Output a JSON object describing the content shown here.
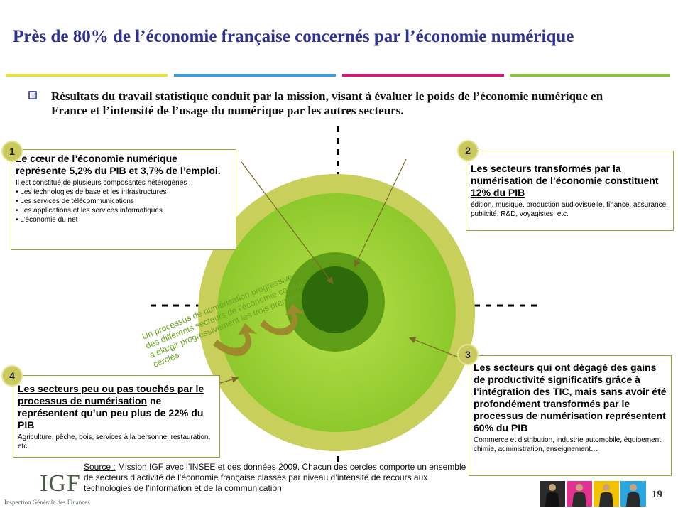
{
  "title": "Près de 80% de l’économie française concernés par l’économie numérique",
  "accent_colors": {
    "title": "#2e3192",
    "bar_yellow": "#e8e23a",
    "bar_blue": "#3a9fd8",
    "bar_magenta": "#d11b7c",
    "bar_green": "#8fc23f",
    "outer_ring": "#c9cf5b",
    "middle_disc": "#9fd63a",
    "inner_ring": "#5f9d17",
    "core": "#2d6b0a",
    "circle_text": "#6aa521"
  },
  "intro": {
    "bullet_icon": "hollow-square-bullet",
    "text": "Résultats du travail statistique conduit par la mission, visant à évaluer le poids de l’économie numérique en France et l’intensité de l’usage du numérique par les autres secteurs."
  },
  "boxes": [
    {
      "badge": "1",
      "headline": "Le cœur de l’économie numérique représente 5,2% du PIB et 3,7% de l’emploi.",
      "intro": "Il est constitué de plusieurs composantes hétérogènes :",
      "items": [
        "• Les technologies de base et les infrastructures",
        "• Les services de télécommunications",
        "• Les applications et les services informatiques",
        "• L’économie du net"
      ]
    },
    {
      "badge": "2",
      "headline": "Les secteurs transformés par la numérisation de l’économie constituent 12% du PIB",
      "details": "édition, musique, production audiovisuelle, finance, assurance, publicité, R&D, voyagistes, etc."
    },
    {
      "badge": "3",
      "headline_underlined": "Les secteurs qui ont dégagé des gains de productivité significatifs grâce à l’intégration des TIC,",
      "headline_rest": " mais sans avoir été profondément transformés par le processus de numérisation représentent 60% du PIB",
      "details": "Commerce et distribution, industrie automobile, équipement, chimie, administration, enseignement…"
    },
    {
      "badge": "4",
      "headline_underlined": "Les secteurs peu ou pas touchés par le processus de numérisation",
      "headline_rest": " ne représentent qu’un peu plus de 22% du PIB",
      "details": "Agriculture, pêche, bois, services à la personne, restauration, etc."
    }
  ],
  "circle_text": [
    "Un processus de numérisation progressive",
    "des différents secteurs de l’économie conduit",
    "à élargir progressivement les trois premiers",
    "cercles"
  ],
  "source": {
    "label": "Source :",
    "text": " Mission IGF avec l’INSEE et des données 2009. Chacun des cercles comporte un ensemble de secteurs d’activité de l’économie française classés par niveau d’intensité de recours aux technologies de l’information et de la communication"
  },
  "logo": {
    "text": "IGF",
    "subtitle": "Inspection Générale des Finances"
  },
  "page_number": "19",
  "thumbnails": [
    {
      "color": "#2b2b2b",
      "icon": "person-black-icon"
    },
    {
      "color": "#e0338f",
      "icon": "person-magenta-icon"
    },
    {
      "color": "#f2c200",
      "icon": "person-yellow-icon"
    },
    {
      "color": "#2aa6df",
      "icon": "person-blue-icon"
    }
  ]
}
